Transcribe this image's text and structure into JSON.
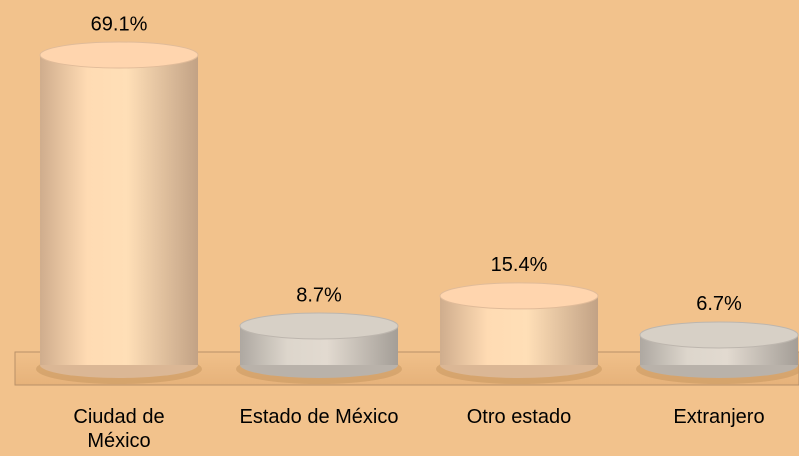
{
  "chart_data": {
    "type": "bar",
    "categories": [
      "Ciudad de México",
      "Estado de México",
      "Otro estado",
      "Extranjero"
    ],
    "values": [
      69.1,
      8.7,
      15.4,
      6.7
    ],
    "value_labels": [
      "69.1%",
      "8.7%",
      "15.4%",
      "6.7%"
    ],
    "colors": [
      "#f3cba6",
      "#cdc6bd",
      "#f3cba6",
      "#cdc6bd"
    ],
    "background": "#f2c28c"
  }
}
